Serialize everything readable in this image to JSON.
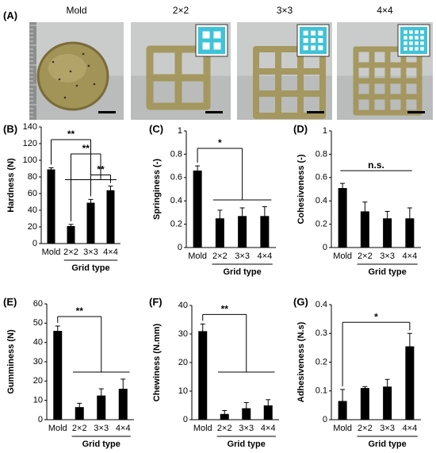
{
  "photos": {
    "panel_label": "(A)",
    "items": [
      {
        "label": "Mold",
        "inset": false,
        "grid": 0
      },
      {
        "label": "2×2",
        "inset": true,
        "grid": 2
      },
      {
        "label": "3×3",
        "inset": true,
        "grid": 3
      },
      {
        "label": "4×4",
        "inset": true,
        "grid": 4
      }
    ],
    "colors": {
      "background": "#c9ccca",
      "gel": "#a29356",
      "gel_dark": "#7a6c3a",
      "inset_bg": "#3ec3d8",
      "inset_frame": "#ffffff",
      "scale_bar": "#000000"
    }
  },
  "chart_data": [
    {
      "panel": "(B)",
      "type": "bar",
      "categories": [
        "Mold",
        "2×2",
        "3×3",
        "4×4"
      ],
      "values": [
        89,
        21,
        49,
        64
      ],
      "errors": [
        2,
        2,
        4,
        5
      ],
      "ylabel": "Hardness (N)",
      "xgroup_label": "Grid type",
      "ylim": [
        0,
        140
      ],
      "ticks": [
        0,
        20,
        40,
        60,
        80,
        100,
        120,
        140
      ],
      "grid": false,
      "bar_color": "#000000",
      "sig": [
        {
          "kind": "fan",
          "from": 0,
          "to": [
            1,
            2,
            3
          ],
          "label": "**"
        },
        {
          "kind": "fan",
          "from": 1,
          "to": [
            2,
            3
          ],
          "label": "**"
        },
        {
          "kind": "pair",
          "from": 2,
          "to": 3,
          "label": "**"
        }
      ]
    },
    {
      "panel": "(C)",
      "type": "bar",
      "categories": [
        "Mold",
        "2×2",
        "3×3",
        "4×4"
      ],
      "values": [
        0.66,
        0.25,
        0.27,
        0.27
      ],
      "errors": [
        0.04,
        0.07,
        0.07,
        0.08
      ],
      "ylabel": "Springiness (-)",
      "xgroup_label": "Grid type",
      "ylim": [
        0,
        1
      ],
      "ticks": [
        0,
        0.2,
        0.4,
        0.6,
        0.8,
        1
      ],
      "grid": false,
      "bar_color": "#000000",
      "sig": [
        {
          "kind": "fan",
          "from": 0,
          "to": [
            1,
            2,
            3
          ],
          "label": "*"
        }
      ]
    },
    {
      "panel": "(D)",
      "type": "bar",
      "categories": [
        "Mold",
        "2×2",
        "3×3",
        "4×4"
      ],
      "values": [
        0.51,
        0.31,
        0.25,
        0.25
      ],
      "errors": [
        0.04,
        0.08,
        0.06,
        0.09
      ],
      "ylabel": "Cohesiveness (-)",
      "xgroup_label": "Grid type",
      "ylim": [
        0,
        1
      ],
      "ticks": [
        0,
        0.2,
        0.4,
        0.6,
        0.8,
        1
      ],
      "grid": false,
      "bar_color": "#000000",
      "sig": [
        {
          "kind": "span",
          "from": 0,
          "to": 3,
          "label": "n.s."
        }
      ]
    },
    {
      "panel": "(E)",
      "type": "bar",
      "categories": [
        "Mold",
        "2×2",
        "3×3",
        "4×4"
      ],
      "values": [
        46,
        6.5,
        12.5,
        16
      ],
      "errors": [
        2.5,
        2,
        3.5,
        5
      ],
      "ylabel": "Gumminess (N)",
      "xgroup_label": "Grid type",
      "ylim": [
        0,
        60
      ],
      "ticks": [
        0,
        10,
        20,
        30,
        40,
        50,
        60
      ],
      "grid": false,
      "bar_color": "#000000",
      "sig": [
        {
          "kind": "fan",
          "from": 0,
          "to": [
            1,
            2,
            3
          ],
          "label": "**"
        }
      ]
    },
    {
      "panel": "(F)",
      "type": "bar",
      "categories": [
        "Mold",
        "2×2",
        "3×3",
        "4×4"
      ],
      "values": [
        31,
        2,
        4,
        5
      ],
      "errors": [
        2.5,
        1.2,
        2,
        2
      ],
      "ylabel": "Chewiness (N.mm)",
      "xgroup_label": "Grid type",
      "ylim": [
        0,
        40
      ],
      "ticks": [
        0,
        10,
        20,
        30,
        40
      ],
      "grid": false,
      "bar_color": "#000000",
      "sig": [
        {
          "kind": "fan",
          "from": 0,
          "to": [
            1,
            2,
            3
          ],
          "label": "**"
        }
      ]
    },
    {
      "panel": "(G)",
      "type": "bar",
      "categories": [
        "Mold",
        "2×2",
        "3×3",
        "4×4"
      ],
      "values": [
        0.065,
        0.11,
        0.115,
        0.255
      ],
      "errors": [
        0.04,
        0.005,
        0.025,
        0.045
      ],
      "ylabel": "Adhesiveness (N.s)",
      "xgroup_label": "Grid type",
      "ylim": [
        0,
        0.4
      ],
      "ticks": [
        0,
        0.1,
        0.2,
        0.3,
        0.4
      ],
      "grid": false,
      "bar_color": "#000000",
      "sig": [
        {
          "kind": "pair",
          "from": 0,
          "to": 3,
          "label": "*"
        }
      ]
    }
  ]
}
